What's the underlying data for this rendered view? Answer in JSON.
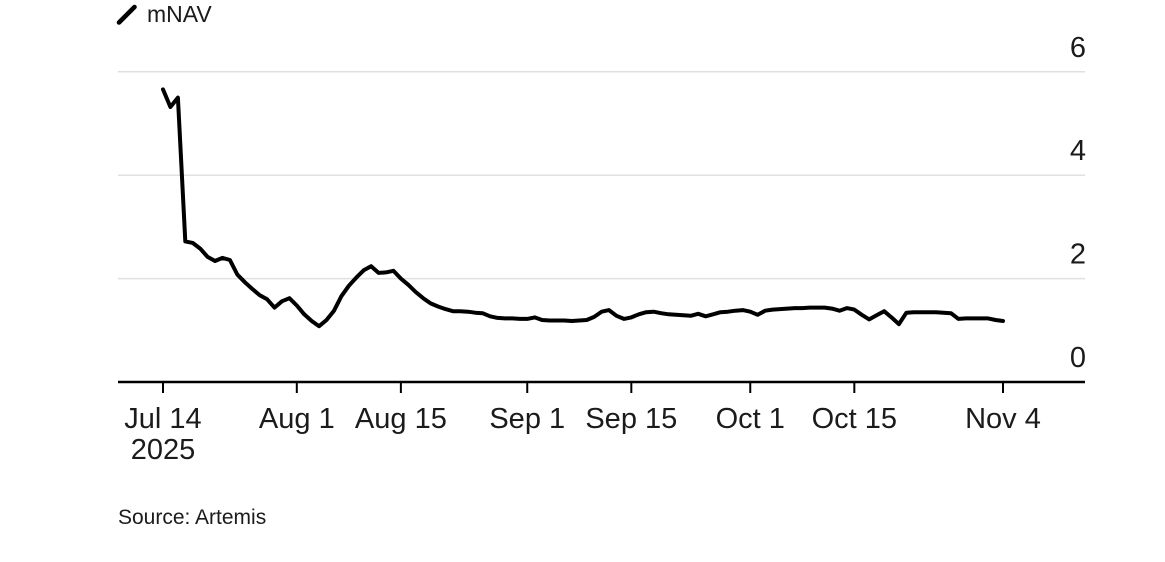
{
  "legend": {
    "series_label": "mNAV"
  },
  "source_note": "Source: Artemis",
  "colors": {
    "line": "#000000",
    "grid": "#e0e0e0",
    "axis": "#000000",
    "text": "#1b1b1b",
    "background": "#ffffff"
  },
  "chart_data": {
    "type": "line",
    "title": "",
    "xlabel": "",
    "ylabel": "",
    "ylim": [
      0,
      6
    ],
    "y_ticks": [
      0,
      2,
      4,
      6
    ],
    "y_axis_side": "right",
    "grid": "horizontal-only",
    "legend_position": "top-left",
    "x_range": [
      "2025-07-14",
      "2025-11-04"
    ],
    "x_ticks": [
      {
        "label": "Jul 14",
        "sublabel": "2025",
        "day_index": 0
      },
      {
        "label": "Aug 1",
        "day_index": 18
      },
      {
        "label": "Aug 15",
        "day_index": 32
      },
      {
        "label": "Sep 1",
        "day_index": 49
      },
      {
        "label": "Sep 15",
        "day_index": 63
      },
      {
        "label": "Oct 1",
        "day_index": 79
      },
      {
        "label": "Oct 15",
        "day_index": 93
      },
      {
        "label": "Nov 4",
        "day_index": 113
      }
    ],
    "series": [
      {
        "name": "mNAV",
        "start_date": "2025-07-14",
        "frequency": "daily",
        "values": [
          5.66,
          5.32,
          5.5,
          2.72,
          2.69,
          2.58,
          2.42,
          2.34,
          2.4,
          2.36,
          2.08,
          1.93,
          1.8,
          1.68,
          1.6,
          1.44,
          1.56,
          1.62,
          1.48,
          1.31,
          1.18,
          1.08,
          1.2,
          1.38,
          1.66,
          1.86,
          2.02,
          2.16,
          2.24,
          2.11,
          2.12,
          2.15,
          2.0,
          1.88,
          1.74,
          1.62,
          1.52,
          1.46,
          1.41,
          1.37,
          1.37,
          1.36,
          1.34,
          1.33,
          1.27,
          1.24,
          1.23,
          1.23,
          1.22,
          1.22,
          1.25,
          1.2,
          1.19,
          1.19,
          1.19,
          1.18,
          1.19,
          1.2,
          1.26,
          1.36,
          1.39,
          1.28,
          1.22,
          1.25,
          1.31,
          1.35,
          1.36,
          1.33,
          1.31,
          1.3,
          1.29,
          1.28,
          1.32,
          1.27,
          1.31,
          1.35,
          1.36,
          1.38,
          1.39,
          1.36,
          1.3,
          1.38,
          1.4,
          1.41,
          1.42,
          1.43,
          1.43,
          1.44,
          1.44,
          1.44,
          1.42,
          1.38,
          1.43,
          1.4,
          1.3,
          1.21,
          1.29,
          1.37,
          1.25,
          1.12,
          1.34,
          1.35,
          1.35,
          1.35,
          1.35,
          1.34,
          1.33,
          1.22,
          1.23,
          1.23,
          1.23,
          1.23,
          1.2,
          1.18
        ]
      }
    ]
  }
}
